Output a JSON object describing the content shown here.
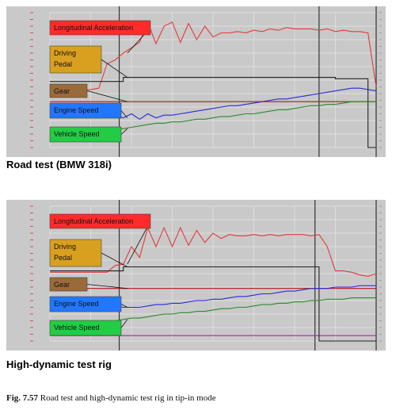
{
  "colors": {
    "background": "#c9c9c9",
    "grid": "#e4e4e4",
    "acceleration": "#e23b3b",
    "pedal": "#222222",
    "gear": "#b8121b",
    "engine_speed": "#2a2ad6",
    "vehicle_speed": "#2c8a2c",
    "box_accel": "#ff2b2b",
    "box_pedal": "#d9a020",
    "box_gear": "#9a6a3a",
    "box_engine": "#2277ff",
    "box_vehicle": "#22cc44"
  },
  "chart_data": [
    {
      "type": "line",
      "caption": "Road test (BMW 318i)",
      "x": [
        0,
        1,
        2,
        3,
        4,
        5,
        6,
        7,
        8,
        9,
        10,
        11,
        12,
        13,
        14,
        15,
        16,
        17,
        18,
        19,
        20,
        21,
        22,
        23,
        24,
        25,
        26,
        27,
        28,
        29,
        30,
        31,
        32,
        33,
        34,
        35,
        36,
        37,
        38,
        39,
        40
      ],
      "series": [
        {
          "name": "Longitudinal Acceleration",
          "color": "acceleration",
          "values": [
            0.42,
            0.42,
            0.42,
            0.42,
            0.42,
            0.43,
            0.44,
            0.62,
            0.65,
            0.7,
            0.74,
            0.78,
            0.93,
            0.77,
            0.9,
            0.93,
            0.78,
            0.92,
            0.8,
            0.9,
            0.82,
            0.85,
            0.85,
            0.86,
            0.85,
            0.87,
            0.86,
            0.88,
            0.87,
            0.89,
            0.88,
            0.88,
            0.88,
            0.87,
            0.88,
            0.86,
            0.87,
            0.86,
            0.86,
            0.85,
            0.45
          ]
        },
        {
          "name": "Driving Pedal",
          "color": "pedal",
          "values": [
            0.49,
            0.49,
            0.49,
            0.49,
            0.49,
            0.49,
            0.49,
            0.49,
            0.49,
            0.52,
            0.52,
            0.52,
            0.52,
            0.52,
            0.52,
            0.52,
            0.52,
            0.52,
            0.52,
            0.52,
            0.52,
            0.52,
            0.52,
            0.52,
            0.52,
            0.52,
            0.52,
            0.52,
            0.52,
            0.52,
            0.52,
            0.52,
            0.52,
            0.52,
            0.52,
            0.51,
            0.51,
            0.51,
            0.51,
            0.0,
            0.0
          ]
        },
        {
          "name": "Gear",
          "color": "gear",
          "values": [
            0.34,
            0.34,
            0.34,
            0.34,
            0.34,
            0.34,
            0.34,
            0.34,
            0.34,
            0.34,
            0.34,
            0.34,
            0.34,
            0.34,
            0.34,
            0.34,
            0.34,
            0.34,
            0.34,
            0.34,
            0.34,
            0.34,
            0.34,
            0.34,
            0.34,
            0.34,
            0.34,
            0.34,
            0.34,
            0.34,
            0.34,
            0.34,
            0.34,
            0.34,
            0.34,
            0.34,
            0.34,
            0.34,
            0.34,
            0.34,
            0.34
          ]
        },
        {
          "name": "Engine Speed",
          "color": "engine_speed",
          "values": [
            0.24,
            0.24,
            0.24,
            0.24,
            0.24,
            0.24,
            0.24,
            0.24,
            0.24,
            0.22,
            0.25,
            0.21,
            0.25,
            0.22,
            0.24,
            0.24,
            0.25,
            0.26,
            0.27,
            0.28,
            0.29,
            0.3,
            0.31,
            0.31,
            0.32,
            0.33,
            0.34,
            0.35,
            0.36,
            0.36,
            0.37,
            0.38,
            0.39,
            0.4,
            0.41,
            0.42,
            0.43,
            0.44,
            0.44,
            0.43,
            0.42
          ]
        },
        {
          "name": "Vehicle Speed",
          "color": "vehicle_speed",
          "values": [
            0.13,
            0.13,
            0.13,
            0.13,
            0.13,
            0.13,
            0.13,
            0.13,
            0.13,
            0.14,
            0.15,
            0.16,
            0.17,
            0.18,
            0.18,
            0.19,
            0.19,
            0.2,
            0.21,
            0.21,
            0.22,
            0.23,
            0.23,
            0.24,
            0.25,
            0.25,
            0.26,
            0.27,
            0.28,
            0.28,
            0.29,
            0.3,
            0.31,
            0.31,
            0.32,
            0.32,
            0.33,
            0.34,
            0.34,
            0.34,
            0.34
          ]
        }
      ],
      "vertical_markers": [
        8.5,
        33.0,
        40.0
      ],
      "ylim": [
        0,
        1
      ],
      "grid": true
    },
    {
      "type": "line",
      "caption": "High-dynamic test rig",
      "x": [
        0,
        1,
        2,
        3,
        4,
        5,
        6,
        7,
        8,
        9,
        10,
        11,
        12,
        13,
        14,
        15,
        16,
        17,
        18,
        19,
        20,
        21,
        22,
        23,
        24,
        25,
        26,
        27,
        28,
        29,
        30,
        31,
        32,
        33,
        34,
        35,
        36,
        37,
        38,
        39,
        40
      ],
      "series": [
        {
          "name": "Longitudinal Acceleration",
          "color": "acceleration",
          "values": [
            0.51,
            0.51,
            0.51,
            0.51,
            0.51,
            0.51,
            0.51,
            0.51,
            0.56,
            0.57,
            0.7,
            0.62,
            0.84,
            0.7,
            0.84,
            0.7,
            0.84,
            0.71,
            0.82,
            0.73,
            0.8,
            0.76,
            0.79,
            0.78,
            0.78,
            0.79,
            0.78,
            0.79,
            0.78,
            0.79,
            0.79,
            0.79,
            0.78,
            0.79,
            0.7,
            0.52,
            0.52,
            0.51,
            0.49,
            0.48,
            0.5
          ]
        },
        {
          "name": "Driving Pedal",
          "color": "pedal",
          "values": [
            0.52,
            0.52,
            0.52,
            0.52,
            0.52,
            0.52,
            0.52,
            0.52,
            0.52,
            0.55,
            0.55,
            0.55,
            0.55,
            0.55,
            0.55,
            0.55,
            0.55,
            0.55,
            0.55,
            0.55,
            0.55,
            0.55,
            0.55,
            0.55,
            0.55,
            0.55,
            0.55,
            0.55,
            0.55,
            0.55,
            0.55,
            0.55,
            0.55,
            0.0,
            0.0,
            0.0,
            0.0,
            0.0,
            0.0,
            0.0,
            0.0
          ]
        },
        {
          "name": "Gear",
          "color": "gear",
          "values": [
            0.39,
            0.39,
            0.39,
            0.39,
            0.39,
            0.39,
            0.39,
            0.39,
            0.39,
            0.39,
            0.39,
            0.39,
            0.39,
            0.39,
            0.39,
            0.39,
            0.39,
            0.39,
            0.39,
            0.39,
            0.39,
            0.39,
            0.39,
            0.39,
            0.39,
            0.39,
            0.39,
            0.39,
            0.39,
            0.39,
            0.39,
            0.39,
            0.39,
            0.39,
            0.39,
            0.39,
            0.39,
            0.39,
            0.39,
            0.39,
            0.39
          ]
        },
        {
          "name": "Engine Speed",
          "color": "engine_speed",
          "values": [
            0.26,
            0.26,
            0.26,
            0.26,
            0.26,
            0.26,
            0.26,
            0.26,
            0.26,
            0.25,
            0.25,
            0.25,
            0.26,
            0.27,
            0.27,
            0.28,
            0.28,
            0.29,
            0.3,
            0.3,
            0.31,
            0.31,
            0.32,
            0.33,
            0.33,
            0.34,
            0.35,
            0.35,
            0.36,
            0.37,
            0.37,
            0.38,
            0.39,
            0.39,
            0.39,
            0.4,
            0.4,
            0.4,
            0.41,
            0.41,
            0.41
          ]
        },
        {
          "name": "Vehicle Speed",
          "color": "vehicle_speed",
          "values": [
            0.15,
            0.15,
            0.15,
            0.15,
            0.15,
            0.15,
            0.15,
            0.15,
            0.15,
            0.16,
            0.17,
            0.17,
            0.18,
            0.19,
            0.2,
            0.2,
            0.21,
            0.21,
            0.22,
            0.22,
            0.23,
            0.24,
            0.24,
            0.25,
            0.25,
            0.26,
            0.27,
            0.27,
            0.28,
            0.28,
            0.29,
            0.29,
            0.3,
            0.3,
            0.31,
            0.31,
            0.31,
            0.32,
            0.32,
            0.32,
            0.32
          ]
        }
      ],
      "extra_lines": [
        {
          "color": "#b020b0",
          "value": 0.04
        }
      ],
      "vertical_markers": [
        8.5,
        32.5,
        40.0
      ],
      "ylim": [
        0,
        1
      ],
      "grid": true
    }
  ],
  "figure_caption": {
    "label": "Fig. 7.57",
    "text": " Road test and high-dynamic test rig in tip-in mode"
  }
}
